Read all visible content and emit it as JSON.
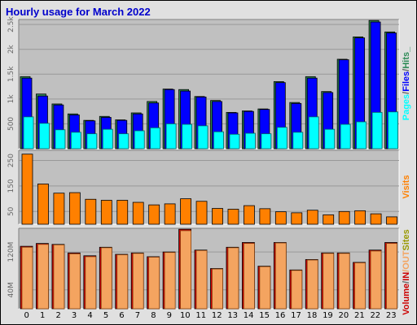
{
  "title": "Hourly usage for March 2022",
  "colors": {
    "background": "#e0e0e0",
    "plot_bg": "#c0c0c0",
    "hits": "#2e8b57",
    "files": "#0000ff",
    "pages": "#00ffff",
    "visits": "#ff8000",
    "in": "#cc0000",
    "out": "#f4a460",
    "sites": "#999900",
    "volume_label": "#cc0000"
  },
  "chart_data": [
    {
      "type": "bar",
      "name": "pages-files-hits",
      "categories": [
        "0",
        "1",
        "2",
        "3",
        "4",
        "5",
        "6",
        "7",
        "8",
        "9",
        "10",
        "11",
        "12",
        "13",
        "14",
        "15",
        "16",
        "17",
        "18",
        "19",
        "20",
        "21",
        "22",
        "23"
      ],
      "series": [
        {
          "name": "Hits",
          "values": [
            1450,
            1100,
            900,
            700,
            570,
            650,
            580,
            720,
            950,
            1200,
            1190,
            1050,
            970,
            730,
            760,
            800,
            1350,
            930,
            1450,
            1150,
            1800,
            2250,
            2580,
            2350
          ]
        },
        {
          "name": "Files",
          "values": [
            1420,
            1060,
            880,
            680,
            560,
            630,
            570,
            700,
            920,
            1190,
            1160,
            1040,
            950,
            720,
            750,
            790,
            1330,
            910,
            1420,
            1130,
            1790,
            2230,
            2550,
            2330
          ]
        },
        {
          "name": "Pages",
          "values": [
            640,
            510,
            380,
            330,
            300,
            390,
            300,
            360,
            420,
            500,
            490,
            460,
            340,
            290,
            310,
            300,
            430,
            330,
            640,
            390,
            490,
            540,
            730,
            740
          ]
        }
      ],
      "ylim": [
        0,
        2600
      ],
      "yticks": [
        "500",
        "1k",
        "1.5k",
        "2k",
        "2.5k"
      ],
      "ytick_values": [
        500,
        1000,
        1500,
        2000,
        2500
      ],
      "legend": [
        "Pages",
        "/",
        "Files",
        "/",
        "Hits",
        "_"
      ]
    },
    {
      "type": "bar",
      "name": "visits",
      "categories": [
        "0",
        "1",
        "2",
        "3",
        "4",
        "5",
        "6",
        "7",
        "8",
        "9",
        "10",
        "11",
        "12",
        "13",
        "14",
        "15",
        "16",
        "17",
        "18",
        "19",
        "20",
        "21",
        "22",
        "23"
      ],
      "series": [
        {
          "name": "Visits",
          "values": [
            275,
            158,
            122,
            124,
            98,
            94,
            94,
            86,
            76,
            80,
            100,
            90,
            62,
            59,
            73,
            61,
            49,
            45,
            55,
            37,
            50,
            53,
            41,
            29
          ]
        }
      ],
      "ylim": [
        0,
        290
      ],
      "yticks": [
        "50",
        "150",
        "250"
      ],
      "ytick_values": [
        50,
        150,
        250
      ],
      "legend": [
        "Visits"
      ]
    },
    {
      "type": "bar",
      "name": "volume",
      "categories": [
        "0",
        "1",
        "2",
        "3",
        "4",
        "5",
        "6",
        "7",
        "8",
        "9",
        "10",
        "11",
        "12",
        "13",
        "14",
        "15",
        "16",
        "17",
        "18",
        "19",
        "20",
        "21",
        "22",
        "23"
      ],
      "series": [
        {
          "name": "IN",
          "values": [
            132,
            138,
            136,
            118,
            112,
            130,
            115,
            118,
            110,
            120,
            168,
            124,
            85,
            130,
            140,
            90,
            140,
            82,
            104,
            118,
            118,
            98,
            124,
            140
          ]
        },
        {
          "name": "OUT",
          "values": [
            130,
            136,
            135,
            116,
            110,
            129,
            114,
            117,
            109,
            119,
            165,
            123,
            84,
            129,
            138,
            89,
            139,
            81,
            103,
            117,
            117,
            97,
            122,
            138
          ]
        }
      ],
      "ylim": [
        0,
        170
      ],
      "yticks": [
        "40M",
        "120M"
      ],
      "ytick_values": [
        40,
        120
      ],
      "legend": [
        "Volume",
        "/",
        "IN",
        "/OUT",
        "Sites"
      ]
    }
  ],
  "xticks": [
    "0",
    "1",
    "2",
    "3",
    "4",
    "5",
    "6",
    "7",
    "8",
    "9",
    "10",
    "11",
    "12",
    "13",
    "14",
    "15",
    "16",
    "17",
    "18",
    "19",
    "20",
    "21",
    "22",
    "23"
  ]
}
